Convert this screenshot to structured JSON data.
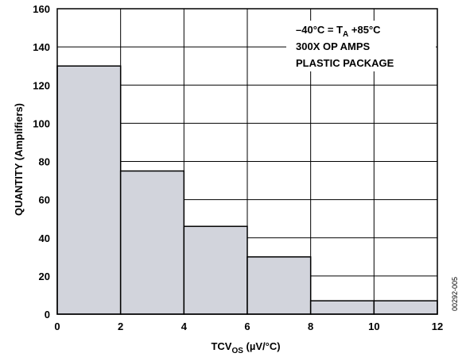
{
  "chart_data": {
    "type": "bar",
    "bin_edges": [
      0,
      2,
      4,
      6,
      8,
      10,
      12
    ],
    "values": [
      130,
      75,
      46,
      30,
      7,
      7
    ],
    "xlim": [
      0,
      12
    ],
    "ylim": [
      0,
      160
    ],
    "xticks": [
      0,
      2,
      4,
      6,
      8,
      10,
      12
    ],
    "yticks": [
      0,
      20,
      40,
      60,
      80,
      100,
      120,
      140,
      160
    ],
    "xlabel": {
      "main": "TCV",
      "sub": "OS",
      "units": " (µV/°C)"
    },
    "ylabel": "QUANTITY (Amplifiers)",
    "grid": true,
    "bar_color": "#d2d4dc",
    "annotation": {
      "line1": {
        "prefix": "–40°C = T",
        "sub": "A",
        "suffix": " +85°C"
      },
      "line2": "300X OP AMPS",
      "line3": "PLASTIC PACKAGE"
    },
    "figure_code": "00292-005"
  }
}
